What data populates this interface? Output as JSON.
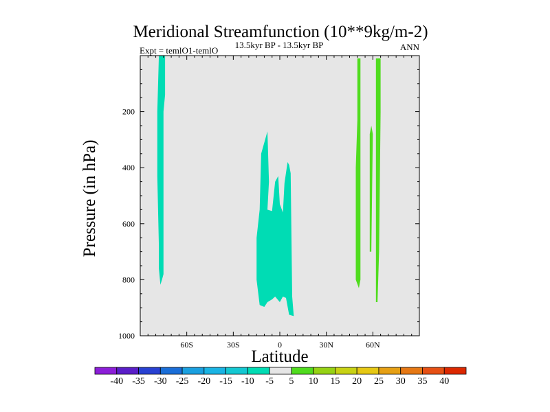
{
  "chart_data": {
    "type": "contour",
    "title": "Meridional Streamfunction (10**9kg/m-2)",
    "subtitle": "13.5kyr BP - 13.5kyr BP",
    "left_label": "Expt = temlO1-temlO",
    "right_label": "ANN",
    "xlabel": "Latitude",
    "ylabel": "Pressure (in hPa)",
    "xlim": [
      -90,
      90
    ],
    "ylim": [
      1000,
      0
    ],
    "x_ticks": [
      {
        "value": -60,
        "label": "60S"
      },
      {
        "value": -30,
        "label": "30S"
      },
      {
        "value": 0,
        "label": "0"
      },
      {
        "value": 30,
        "label": "30N"
      },
      {
        "value": 60,
        "label": "60N"
      }
    ],
    "y_ticks": [
      {
        "value": 200,
        "label": "200"
      },
      {
        "value": 400,
        "label": "400"
      },
      {
        "value": 600,
        "label": "600"
      },
      {
        "value": 800,
        "label": "800"
      },
      {
        "value": 1000,
        "label": "1000"
      }
    ],
    "background_color": "#e6e6e6",
    "colorbar": {
      "colors": [
        "#8c1ed8",
        "#5a1ec8",
        "#2841d2",
        "#1a6ed8",
        "#1aa0e0",
        "#1ab4e4",
        "#14c8d2",
        "#00dcb4",
        "#e6e6e6",
        "#50dc1e",
        "#96d214",
        "#c8d214",
        "#e6c814",
        "#e6a014",
        "#e67814",
        "#e65014",
        "#dc2800"
      ],
      "labels": [
        "-40",
        "-35",
        "-30",
        "-25",
        "-20",
        "-15",
        "-10",
        "-5",
        "5",
        "10",
        "15",
        "20",
        "25",
        "30",
        "35",
        "40"
      ]
    },
    "regions": [
      {
        "name": "southern-high-latitude-negative-cell",
        "value_range": "-5 to -10",
        "color": "#00dcb4",
        "outline": [
          [
            -78,
            0
          ],
          [
            -74,
            0
          ],
          [
            -74,
            140
          ],
          [
            -75,
            200
          ],
          [
            -75,
            780
          ],
          [
            -76,
            800
          ],
          [
            -77,
            818
          ],
          [
            -78,
            760
          ],
          [
            -78,
            680
          ],
          [
            -79,
            430
          ],
          [
            -79,
            200
          ]
        ]
      },
      {
        "name": "tropical-negative-cell",
        "value_range": "-5 to -10",
        "color": "#00dcb4",
        "outline": [
          [
            -15,
            800
          ],
          [
            -15,
            650
          ],
          [
            -13,
            550
          ],
          [
            -12,
            350
          ],
          [
            -8,
            270
          ],
          [
            -7,
            450
          ],
          [
            -8,
            550
          ],
          [
            -5,
            555
          ],
          [
            -3,
            450
          ],
          [
            -1,
            430
          ],
          [
            0,
            530
          ],
          [
            2,
            560
          ],
          [
            3,
            455
          ],
          [
            5,
            380
          ],
          [
            6,
            390
          ],
          [
            7,
            420
          ],
          [
            8,
            860
          ],
          [
            9,
            930
          ],
          [
            6,
            925
          ],
          [
            4,
            865
          ],
          [
            2,
            860
          ],
          [
            0,
            880
          ],
          [
            -3,
            860
          ],
          [
            -5,
            870
          ],
          [
            -8,
            880
          ],
          [
            -10,
            897
          ],
          [
            -13,
            890
          ],
          [
            -15,
            800
          ]
        ]
      },
      {
        "name": "northern-positive-cell-1",
        "value_range": "5 to 10",
        "color": "#50dc1e",
        "outline": [
          [
            50,
            230
          ],
          [
            50,
            10
          ],
          [
            52,
            10
          ],
          [
            52,
            100
          ],
          [
            52,
            800
          ],
          [
            51,
            830
          ],
          [
            49,
            800
          ],
          [
            49,
            400
          ]
        ]
      },
      {
        "name": "northern-positive-cell-2",
        "value_range": "5 to 10",
        "color": "#50dc1e",
        "outline": [
          [
            58,
            280
          ],
          [
            59,
            250
          ],
          [
            60,
            280
          ],
          [
            59,
            700
          ],
          [
            58,
            700
          ]
        ]
      },
      {
        "name": "northern-positive-cell-3",
        "value_range": "5 to 10",
        "color": "#50dc1e",
        "outline": [
          [
            62,
            10
          ],
          [
            65,
            10
          ],
          [
            65,
            200
          ],
          [
            64,
            700
          ],
          [
            63,
            880
          ],
          [
            62,
            880
          ],
          [
            62,
            500
          ]
        ]
      }
    ]
  }
}
